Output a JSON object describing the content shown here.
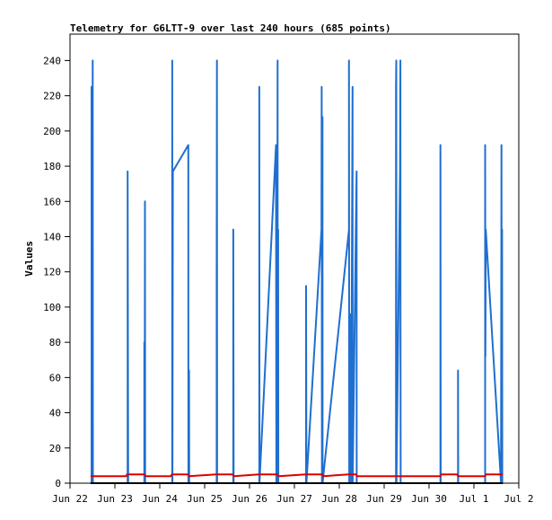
{
  "colors": {
    "background": "#ffffff",
    "axis": "#000000",
    "series_blue": "#1f6fd0",
    "series_red": "#dd0000",
    "series_black": "#000000"
  },
  "chart_data": {
    "type": "line",
    "title": "Telemetry for G6LTT-9 over last 240 hours (685 points)",
    "xlabel": "",
    "ylabel": "Values",
    "xlim": [
      "2022-06-22T00:00",
      "2022-07-02T00:00"
    ],
    "ylim": [
      0,
      255
    ],
    "yticks": [
      0,
      20,
      40,
      60,
      80,
      100,
      120,
      140,
      160,
      180,
      200,
      220,
      240
    ],
    "xticks": [
      {
        "t": "2022-06-22T00:00",
        "label": "Jun 22"
      },
      {
        "t": "2022-06-23T00:00",
        "label": "Jun 23"
      },
      {
        "t": "2022-06-24T00:00",
        "label": "Jun 24"
      },
      {
        "t": "2022-06-25T00:00",
        "label": "Jun 25"
      },
      {
        "t": "2022-06-26T00:00",
        "label": "Jun 26"
      },
      {
        "t": "2022-06-27T00:00",
        "label": "Jun 27"
      },
      {
        "t": "2022-06-28T00:00",
        "label": "Jun 28"
      },
      {
        "t": "2022-06-29T00:00",
        "label": "Jun 29"
      },
      {
        "t": "2022-06-30T00:00",
        "label": "Jun 30"
      },
      {
        "t": "2022-07-01T00:00",
        "label": "Jul 1"
      },
      {
        "t": "2022-07-02T00:00",
        "label": "Jul 2"
      }
    ],
    "grid": false,
    "legend": "none",
    "series": [
      {
        "color": "#1f6fd0",
        "points": [
          [
            "2022-06-22T11:30",
            0
          ],
          [
            "2022-06-22T11:30",
            225
          ],
          [
            "2022-06-22T11:40",
            0
          ],
          [
            "2022-06-22T11:45",
            145
          ],
          [
            "2022-06-22T11:50",
            0
          ],
          [
            "2022-06-22T12:10",
            240
          ],
          [
            "2022-06-22T12:15",
            0
          ],
          [
            "2022-06-23T06:50",
            0
          ],
          [
            "2022-06-23T06:50",
            177
          ],
          [
            "2022-06-23T07:00",
            56
          ],
          [
            "2022-06-23T07:05",
            0
          ],
          [
            "2022-06-23T15:45",
            0
          ],
          [
            "2022-06-23T15:45",
            80
          ],
          [
            "2022-06-23T15:55",
            0
          ],
          [
            "2022-06-23T16:05",
            160
          ],
          [
            "2022-06-23T16:10",
            0
          ],
          [
            "2022-06-24T06:40",
            0
          ],
          [
            "2022-06-24T06:40",
            240
          ],
          [
            "2022-06-24T06:45",
            0
          ],
          [
            "2022-06-24T07:00",
            177
          ],
          [
            "2022-06-24T15:15",
            192
          ],
          [
            "2022-06-24T15:20",
            0
          ],
          [
            "2022-06-24T15:40",
            64
          ],
          [
            "2022-06-24T15:45",
            0
          ],
          [
            "2022-06-25T06:25",
            0
          ],
          [
            "2022-06-25T06:25",
            120
          ],
          [
            "2022-06-25T06:35",
            240
          ],
          [
            "2022-06-25T06:40",
            0
          ],
          [
            "2022-06-25T15:20",
            0
          ],
          [
            "2022-06-25T15:20",
            144
          ],
          [
            "2022-06-25T15:30",
            0
          ],
          [
            "2022-06-26T05:15",
            0
          ],
          [
            "2022-06-26T05:15",
            225
          ],
          [
            "2022-06-26T05:20",
            0
          ],
          [
            "2022-06-26T14:10",
            192
          ],
          [
            "2022-06-26T14:20",
            0
          ],
          [
            "2022-06-26T14:40",
            128
          ],
          [
            "2022-06-26T14:45",
            0
          ],
          [
            "2022-06-26T15:00",
            240
          ],
          [
            "2022-06-26T15:05",
            0
          ],
          [
            "2022-06-26T15:20",
            144
          ],
          [
            "2022-06-26T15:25",
            0
          ],
          [
            "2022-06-27T06:15",
            0
          ],
          [
            "2022-06-27T06:15",
            112
          ],
          [
            "2022-06-27T06:25",
            0
          ],
          [
            "2022-06-27T14:30",
            144
          ],
          [
            "2022-06-27T14:35",
            225
          ],
          [
            "2022-06-27T14:45",
            0
          ],
          [
            "2022-06-27T15:00",
            208
          ],
          [
            "2022-06-27T15:05",
            0
          ],
          [
            "2022-06-28T05:10",
            144
          ],
          [
            "2022-06-28T05:10",
            240
          ],
          [
            "2022-06-28T05:20",
            0
          ],
          [
            "2022-06-28T06:15",
            96
          ],
          [
            "2022-06-28T06:20",
            0
          ],
          [
            "2022-06-28T07:05",
            225
          ],
          [
            "2022-06-28T07:10",
            0
          ],
          [
            "2022-06-28T09:15",
            177
          ],
          [
            "2022-06-28T09:20",
            0
          ],
          [
            "2022-06-29T06:20",
            0
          ],
          [
            "2022-06-29T06:20",
            225
          ],
          [
            "2022-06-29T06:30",
            240
          ],
          [
            "2022-06-29T06:35",
            0
          ],
          [
            "2022-06-29T08:30",
            177
          ],
          [
            "2022-06-29T08:40",
            240
          ],
          [
            "2022-06-29T08:45",
            96
          ],
          [
            "2022-06-29T08:50",
            0
          ],
          [
            "2022-06-30T06:05",
            0
          ],
          [
            "2022-06-30T06:05",
            192
          ],
          [
            "2022-06-30T06:15",
            0
          ],
          [
            "2022-06-30T15:30",
            0
          ],
          [
            "2022-06-30T15:30",
            64
          ],
          [
            "2022-06-30T15:35",
            0
          ],
          [
            "2022-07-01T06:00",
            0
          ],
          [
            "2022-07-01T06:00",
            192
          ],
          [
            "2022-07-01T06:10",
            72
          ],
          [
            "2022-07-01T06:20",
            144
          ],
          [
            "2022-07-01T14:30",
            0
          ],
          [
            "2022-07-01T14:45",
            192
          ],
          [
            "2022-07-01T14:55",
            0
          ],
          [
            "2022-07-01T15:05",
            144
          ],
          [
            "2022-07-01T15:10",
            0
          ]
        ]
      },
      {
        "color": "#dd0000",
        "points": [
          [
            "2022-06-22T11:00",
            4
          ],
          [
            "2022-06-23T06:00",
            4
          ],
          [
            "2022-06-23T06:30",
            5
          ],
          [
            "2022-06-23T16:00",
            5
          ],
          [
            "2022-06-23T16:30",
            4
          ],
          [
            "2022-06-24T06:00",
            4
          ],
          [
            "2022-06-24T06:30",
            5
          ],
          [
            "2022-06-24T15:00",
            5
          ],
          [
            "2022-06-24T15:30",
            4
          ],
          [
            "2022-06-25T06:00",
            5
          ],
          [
            "2022-06-25T15:00",
            5
          ],
          [
            "2022-06-25T15:30",
            4
          ],
          [
            "2022-06-26T05:00",
            5
          ],
          [
            "2022-06-26T15:00",
            5
          ],
          [
            "2022-06-26T15:30",
            4
          ],
          [
            "2022-06-27T06:00",
            5
          ],
          [
            "2022-06-27T15:00",
            5
          ],
          [
            "2022-06-27T15:30",
            4
          ],
          [
            "2022-06-28T05:00",
            5
          ],
          [
            "2022-06-28T09:00",
            5
          ],
          [
            "2022-06-28T09:30",
            4
          ],
          [
            "2022-06-30T06:00",
            4
          ],
          [
            "2022-06-30T06:30",
            5
          ],
          [
            "2022-06-30T15:00",
            5
          ],
          [
            "2022-06-30T15:30",
            4
          ],
          [
            "2022-07-01T06:00",
            4
          ],
          [
            "2022-07-01T06:30",
            5
          ],
          [
            "2022-07-01T15:30",
            5
          ]
        ]
      },
      {
        "color": "#000000",
        "points": [
          [
            "2022-06-22T11:00",
            0
          ],
          [
            "2022-07-01T15:30",
            0
          ]
        ]
      }
    ]
  }
}
